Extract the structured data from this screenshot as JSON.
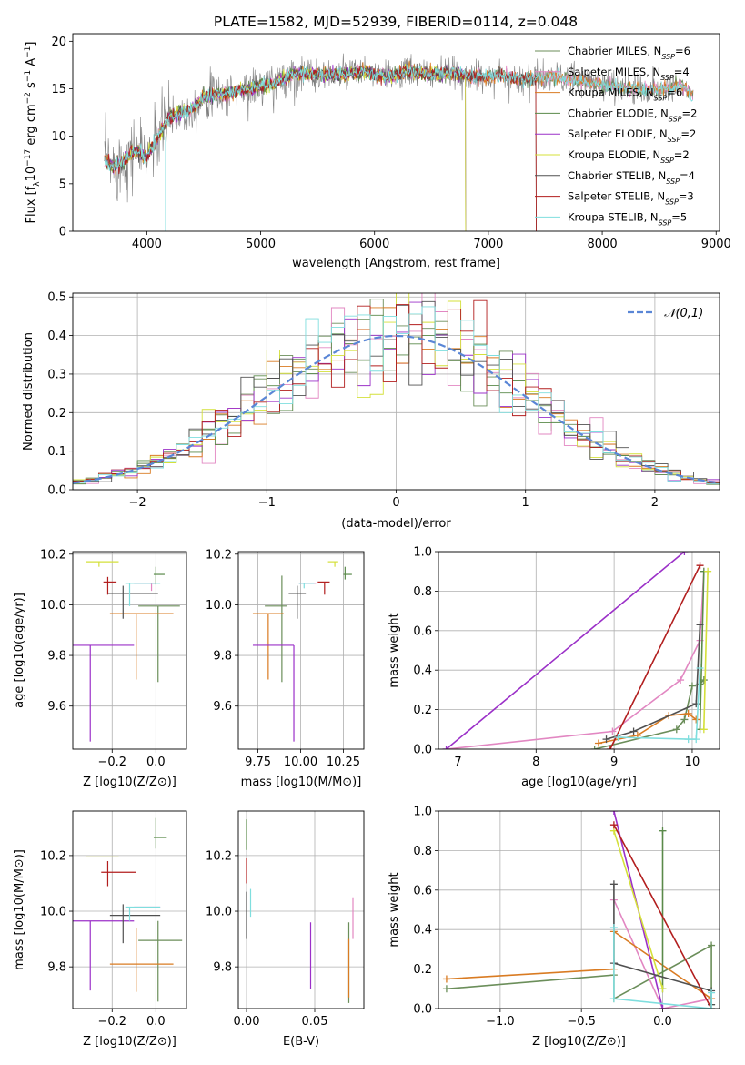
{
  "figure": {
    "title": "PLATE=1582, MJD=52939, FIBERID=0114, z=0.048",
    "colors": [
      "#6b8e5a",
      "#e287c2",
      "#d97b22",
      "#5a8a4a",
      "#9b30c8",
      "#d4e03a",
      "#505050",
      "#b21e1e",
      "#7fdede"
    ],
    "model_colors_note": "",
    "models": [
      "Chabrier MILES",
      "Salpeter MILES",
      "Kroupa MILES",
      "Chabrier ELODIE",
      "Salpeter ELODIE",
      "Kroupa ELODIE",
      "Chabrier STELIB",
      "Salpeter STELIB",
      "Kroupa STELIB"
    ],
    "nssp": [
      "6",
      "4",
      "6",
      "2",
      "2",
      "2",
      "4",
      "3",
      "5"
    ]
  },
  "chart_data": [
    {
      "type": "line",
      "id": "spectrum",
      "title": "PLATE=1582, MJD=52939, FIBERID=0114, z=0.048",
      "xlabel": "wavelength [Angstrom, rest frame]",
      "ylabel": "Flux [f_λ10^-17 erg cm^-2 s^-1 A^-1]",
      "xlim": [
        3350,
        9030
      ],
      "ylim": [
        0,
        20.8
      ],
      "xticks": [
        4000,
        5000,
        6000,
        7000,
        8000,
        9000
      ],
      "yticks": [
        0,
        5,
        10,
        15,
        20
      ],
      "legend": "upper right",
      "series": [
        {
          "name": "Chabrier MILES, N_SSP=6",
          "xmin": 3630,
          "xmax": 8800
        },
        {
          "name": "Salpeter MILES, N_SSP=4",
          "xmin": 3630,
          "xmax": 8800
        },
        {
          "name": "Kroupa MILES, N_SSP=6",
          "xmin": 3630,
          "xmax": 8800
        },
        {
          "name": "Chabrier ELODIE, N_SSP=2",
          "xmin": 3630,
          "xmax": 6800
        },
        {
          "name": "Salpeter ELODIE, N_SSP=2",
          "xmin": 3630,
          "xmax": 6800
        },
        {
          "name": "Kroupa ELODIE, N_SSP=2",
          "xmin": 3630,
          "xmax": 6800
        },
        {
          "name": "Chabrier STELIB, N_SSP=4",
          "xmin": 3630,
          "xmax": 7420
        },
        {
          "name": "Salpeter STELIB, N_SSP=3",
          "xmin": 3630,
          "xmax": 7420
        },
        {
          "name": "Kroupa STELIB, N_SSP=5",
          "xmin": 3630,
          "xmax": 8800
        }
      ],
      "data_series_color": "#808080",
      "continuum": {
        "x": [
          3630,
          3700,
          3800,
          3900,
          4000,
          4100,
          4200,
          4300,
          4400,
          4500,
          4700,
          4900,
          5100,
          5300,
          5500,
          5700,
          5900,
          6100,
          6300,
          6500,
          6700,
          6900,
          7100,
          7300,
          7500,
          7700,
          7900,
          8100,
          8300,
          8500,
          8700,
          8800
        ],
        "y": [
          7.5,
          6.8,
          7.5,
          8.5,
          7.8,
          10.0,
          12.0,
          12.5,
          12.8,
          14.2,
          14.5,
          15.0,
          15.5,
          16.6,
          16.5,
          16.5,
          16.8,
          16.2,
          16.8,
          16.5,
          16.6,
          16.2,
          16.4,
          16.0,
          16.2,
          16.0,
          15.6,
          15.2,
          15.0,
          14.8,
          15.5,
          14.2
        ]
      }
    },
    {
      "type": "bar",
      "id": "residuals",
      "title": "",
      "xlabel": "(data-model)/error",
      "ylabel": "Normed distribution",
      "xlim": [
        -2.5,
        2.5
      ],
      "ylim": [
        0,
        0.51
      ],
      "xticks": [
        -2,
        -1,
        0,
        1,
        2
      ],
      "yticks": [
        0.0,
        0.1,
        0.2,
        0.3,
        0.4,
        0.5
      ],
      "legend": "upper right",
      "gaussian_label": "𝒩(0,1)",
      "gaussian_color": "#5a86d6",
      "bin_width": 0.1,
      "bin_start": -2.5
    },
    {
      "type": "scatter",
      "id": "age-vs-Z",
      "xlabel": "Z [log10(Z/Z⊙)]",
      "ylabel": "age  [log10(age/yr)]",
      "xlim": [
        -0.38,
        0.14
      ],
      "ylim": [
        9.43,
        10.21
      ],
      "xticks": [
        -0.2,
        0.0
      ],
      "yticks": [
        9.6,
        9.8,
        10.0,
        10.2
      ],
      "points": [
        {
          "x": 0.01,
          "y": 9.995,
          "xerr": [
            0.09,
            0.1
          ],
          "yerr": [
            0.3,
            0.0
          ],
          "model": 0
        },
        {
          "x": -0.02,
          "y": 10.085,
          "xerr": [
            0.08,
            0.02
          ],
          "yerr": [
            0.03,
            0.0
          ],
          "model": 1
        },
        {
          "x": -0.09,
          "y": 9.965,
          "xerr": [
            0.12,
            0.17
          ],
          "yerr": [
            0.26,
            0.0
          ],
          "model": 2
        },
        {
          "x": 0.0,
          "y": 10.12,
          "xerr": [
            0.01,
            0.04
          ],
          "yerr": [
            0.04,
            0.03
          ],
          "model": 3
        },
        {
          "x": -0.3,
          "y": 9.84,
          "xerr": [
            0.08,
            0.2
          ],
          "yerr": [
            0.38,
            0.0
          ],
          "model": 4
        },
        {
          "x": -0.26,
          "y": 10.17,
          "xerr": [
            0.06,
            0.09
          ],
          "yerr": [
            0.02,
            0.0
          ],
          "model": 5
        },
        {
          "x": -0.15,
          "y": 10.045,
          "xerr": [
            0.07,
            0.16
          ],
          "yerr": [
            0.1,
            0.03
          ],
          "model": 6
        },
        {
          "x": -0.22,
          "y": 10.09,
          "xerr": [
            0.02,
            0.04
          ],
          "yerr": [
            0.05,
            0.02
          ],
          "model": 7
        },
        {
          "x": -0.12,
          "y": 10.085,
          "xerr": [
            0.02,
            0.14
          ],
          "yerr": [
            0.09,
            0.0
          ],
          "model": 8
        }
      ]
    },
    {
      "type": "scatter",
      "id": "age-vs-mass",
      "xlabel": "mass [log10(M/M⊙)]",
      "ylabel": "",
      "xlim": [
        9.635,
        10.37
      ],
      "ylim": [
        9.43,
        10.21
      ],
      "xticks": [
        9.75,
        10.0,
        10.25
      ],
      "yticks": [
        9.6,
        9.8,
        10.0,
        10.2
      ],
      "points": [
        {
          "x": 9.89,
          "y": 9.995,
          "xerr": [
            0.1,
            0.03
          ],
          "yerr": [
            0.3,
            0.12
          ],
          "model": 0
        },
        {
          "x": 10.02,
          "y": 10.085,
          "xerr": [
            0.03,
            0.07
          ],
          "yerr": [
            0.0,
            0.0
          ],
          "model": 1
        },
        {
          "x": 9.81,
          "y": 9.965,
          "xerr": [
            0.09,
            0.09
          ],
          "yerr": [
            0.26,
            0.0
          ],
          "model": 2
        },
        {
          "x": 10.26,
          "y": 10.12,
          "xerr": [
            0.01,
            0.04
          ],
          "yerr": [
            0.02,
            0.03
          ],
          "model": 3
        },
        {
          "x": 9.96,
          "y": 9.84,
          "xerr": [
            0.24,
            0.0
          ],
          "yerr": [
            0.38,
            0.0
          ],
          "model": 4
        },
        {
          "x": 10.2,
          "y": 10.17,
          "xerr": [
            0.04,
            0.02
          ],
          "yerr": [
            0.02,
            0.0
          ],
          "model": 5
        },
        {
          "x": 9.98,
          "y": 10.045,
          "xerr": [
            0.05,
            0.05
          ],
          "yerr": [
            0.1,
            0.03
          ],
          "model": 6
        },
        {
          "x": 10.14,
          "y": 10.09,
          "xerr": [
            0.04,
            0.03
          ],
          "yerr": [
            0.05,
            0.0
          ],
          "model": 7
        },
        {
          "x": 10.02,
          "y": 10.085,
          "xerr": [
            0.03,
            0.06
          ],
          "yerr": [
            0.02,
            0.0
          ],
          "model": 8
        }
      ]
    },
    {
      "type": "line",
      "id": "massweight-vs-age",
      "xlabel": "age  [log10(age/yr)]",
      "ylabel": "mass weight",
      "xlim": [
        6.75,
        10.35
      ],
      "ylim": [
        0,
        1.0
      ],
      "xticks": [
        7,
        8,
        9,
        10
      ],
      "yticks": [
        0.0,
        0.2,
        0.4,
        0.6,
        0.8,
        1.0
      ],
      "series": [
        {
          "model": 0,
          "x": [
            8.75,
            9.8,
            9.9,
            10.0,
            10.1,
            10.15
          ],
          "y": [
            0.0,
            0.1,
            0.15,
            0.32,
            0.33,
            0.35
          ]
        },
        {
          "model": 1,
          "x": [
            6.85,
            8.98,
            9.85,
            10.1,
            10.15
          ],
          "y": [
            0.0,
            0.09,
            0.35,
            0.55,
            0.9
          ]
        },
        {
          "model": 2,
          "x": [
            8.8,
            9.3,
            9.7,
            9.95,
            10.05
          ],
          "y": [
            0.03,
            0.07,
            0.17,
            0.18,
            0.15
          ]
        },
        {
          "model": 3,
          "x": [
            10.1,
            10.15
          ],
          "y": [
            0.1,
            0.9
          ]
        },
        {
          "model": 4,
          "x": [
            6.85,
            9.9
          ],
          "y": [
            0.0,
            1.0
          ]
        },
        {
          "model": 5,
          "x": [
            10.15,
            10.2
          ],
          "y": [
            0.1,
            0.9
          ]
        },
        {
          "model": 6,
          "x": [
            8.9,
            9.25,
            10.05,
            10.1
          ],
          "y": [
            0.05,
            0.09,
            0.23,
            0.63
          ]
        },
        {
          "model": 7,
          "x": [
            8.95,
            10.1
          ],
          "y": [
            0.0,
            0.93
          ]
        },
        {
          "model": 8,
          "x": [
            9.05,
            9.95,
            10.05,
            10.1
          ],
          "y": [
            0.06,
            0.05,
            0.05,
            0.41
          ]
        }
      ]
    },
    {
      "type": "scatter",
      "id": "mass-vs-Z",
      "xlabel": "Z [log10(Z/Z⊙)]",
      "ylabel": "mass [log10(M/M⊙)]",
      "xlim": [
        -0.38,
        0.14
      ],
      "ylim": [
        9.65,
        10.36
      ],
      "xticks": [
        -0.2,
        0.0
      ],
      "yticks": [
        9.8,
        10.0,
        10.2
      ],
      "points": [
        {
          "x": 0.01,
          "y": 9.895,
          "xerr": [
            0.09,
            0.11
          ],
          "yerr": [
            0.22,
            0.07
          ],
          "model": 0
        },
        {
          "x": -0.02,
          "y": 10.015,
          "xerr": [
            0.08,
            0.04
          ],
          "yerr": [
            0.0,
            0.0
          ],
          "model": 1
        },
        {
          "x": -0.09,
          "y": 9.81,
          "xerr": [
            0.12,
            0.17
          ],
          "yerr": [
            0.1,
            0.13
          ],
          "model": 2
        },
        {
          "x": 0.0,
          "y": 10.265,
          "xerr": [
            0.01,
            0.05
          ],
          "yerr": [
            0.04,
            0.07
          ],
          "model": 3
        },
        {
          "x": -0.3,
          "y": 9.965,
          "xerr": [
            0.08,
            0.2
          ],
          "yerr": [
            0.25,
            0.0
          ],
          "model": 4
        },
        {
          "x": -0.26,
          "y": 10.195,
          "xerr": [
            0.06,
            0.09
          ],
          "yerr": [
            0.0,
            0.0
          ],
          "model": 5
        },
        {
          "x": -0.15,
          "y": 9.985,
          "xerr": [
            0.06,
            0.17
          ],
          "yerr": [
            0.1,
            0.04
          ],
          "model": 6
        },
        {
          "x": -0.22,
          "y": 10.14,
          "xerr": [
            0.03,
            0.13
          ],
          "yerr": [
            0.05,
            0.04
          ],
          "model": 7
        },
        {
          "x": -0.12,
          "y": 10.015,
          "xerr": [
            0.02,
            0.14
          ],
          "yerr": [
            0.05,
            0.0
          ],
          "model": 8
        }
      ]
    },
    {
      "type": "scatter",
      "id": "mass-vs-ebv",
      "xlabel": "E(B-V)",
      "ylabel": "",
      "xlim": [
        -0.006,
        0.086
      ],
      "ylim": [
        9.65,
        10.36
      ],
      "xticks": [
        0.0,
        0.05
      ],
      "yticks": [
        9.8,
        10.0,
        10.2
      ],
      "points": [
        {
          "x": 0.075,
          "y": 9.88,
          "yerr": [
            0.21,
            0.08
          ],
          "model": 0
        },
        {
          "x": 0.078,
          "y": 9.97,
          "yerr": [
            0.07,
            0.08
          ],
          "model": 1
        },
        {
          "x": 0.075,
          "y": 9.9,
          "yerr": [
            0.21,
            0.0
          ],
          "model": 2
        },
        {
          "x": 0.0,
          "y": 10.27,
          "yerr": [
            0.05,
            0.06
          ],
          "model": 3
        },
        {
          "x": 0.047,
          "y": 9.85,
          "yerr": [
            0.13,
            0.11
          ],
          "model": 4
        },
        {
          "x": 0.0,
          "y": 10.2,
          "yerr": [
            0.0,
            0.0
          ],
          "model": 5
        },
        {
          "x": 0.0,
          "y": 10.0,
          "yerr": [
            0.1,
            0.07
          ],
          "model": 6
        },
        {
          "x": 0.0,
          "y": 10.15,
          "yerr": [
            0.05,
            0.04
          ],
          "model": 7
        },
        {
          "x": 0.003,
          "y": 10.02,
          "yerr": [
            0.04,
            0.06
          ],
          "model": 8
        }
      ]
    },
    {
      "type": "line",
      "id": "massweight-vs-Z",
      "xlabel": "Z [log10(Z/Z⊙)]",
      "ylabel": "mass weight",
      "xlim": [
        -1.38,
        0.35
      ],
      "ylim": [
        0,
        1.0
      ],
      "xticks": [
        -1.0,
        -0.5,
        0.0
      ],
      "yticks": [
        0.0,
        0.2,
        0.4,
        0.6,
        0.8,
        1.0
      ],
      "series": [
        {
          "model": 0,
          "x": [
            -1.33,
            -0.3,
            -0.3,
            0.3,
            0.3
          ],
          "y": [
            0.1,
            0.17,
            0.05,
            0.32,
            0.02
          ]
        },
        {
          "model": 1,
          "x": [
            -0.3,
            0.0,
            0.3
          ],
          "y": [
            0.55,
            0.0,
            0.05
          ]
        },
        {
          "model": 2,
          "x": [
            -1.33,
            -0.3,
            -0.3,
            0.3
          ],
          "y": [
            0.15,
            0.2,
            0.39,
            0.05
          ]
        },
        {
          "model": 3,
          "x": [
            0.0,
            0.0
          ],
          "y": [
            0.1,
            0.9
          ]
        },
        {
          "model": 4,
          "x": [
            -0.3,
            0.0
          ],
          "y": [
            1.0,
            0.0
          ]
        },
        {
          "model": 5,
          "x": [
            -0.3,
            0.0
          ],
          "y": [
            0.9,
            0.1
          ]
        },
        {
          "model": 6,
          "x": [
            -0.3,
            -0.3,
            0.3,
            0.3
          ],
          "y": [
            0.63,
            0.23,
            0.09,
            0.02
          ]
        },
        {
          "model": 7,
          "x": [
            -0.3,
            0.3
          ],
          "y": [
            0.93,
            0.0
          ]
        },
        {
          "model": 8,
          "x": [
            -0.3,
            -0.3,
            0.3,
            0.3
          ],
          "y": [
            0.41,
            0.05,
            0.0,
            0.08
          ]
        }
      ]
    }
  ]
}
